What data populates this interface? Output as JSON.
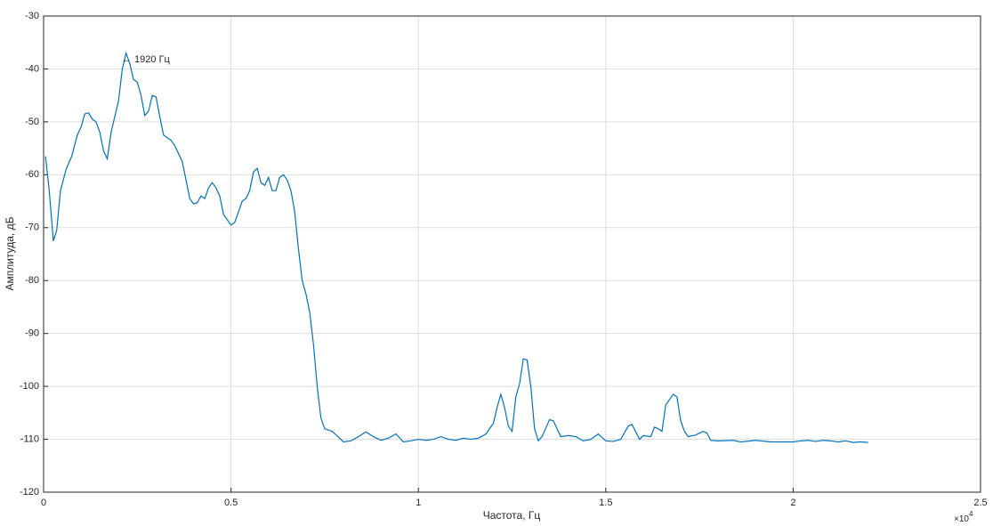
{
  "chart_data": {
    "type": "line",
    "xlabel": "Частота, Гц",
    "ylabel": "Амплитуда, дБ",
    "annotation": "← 1920 Гц",
    "x_multiplier": {
      "base": "×10",
      "exponent": "4"
    },
    "color": "#0072bd",
    "grid": true,
    "xlim": [
      0,
      2.5
    ],
    "xticks": [
      0,
      0.5,
      1,
      1.5,
      2,
      2.5
    ],
    "ylim": [
      -120,
      -30
    ],
    "yticks": [
      -120,
      -110,
      -100,
      -90,
      -80,
      -70,
      -60,
      -50,
      -40,
      -30
    ],
    "x": [
      0.005,
      0.015,
      0.026,
      0.035,
      0.045,
      0.06,
      0.075,
      0.09,
      0.1,
      0.11,
      0.12,
      0.13,
      0.14,
      0.15,
      0.16,
      0.17,
      0.18,
      0.19,
      0.2,
      0.21,
      0.22,
      0.23,
      0.24,
      0.25,
      0.26,
      0.27,
      0.28,
      0.29,
      0.3,
      0.31,
      0.32,
      0.33,
      0.34,
      0.35,
      0.36,
      0.37,
      0.38,
      0.39,
      0.4,
      0.41,
      0.42,
      0.43,
      0.44,
      0.45,
      0.46,
      0.47,
      0.48,
      0.49,
      0.5,
      0.51,
      0.52,
      0.53,
      0.54,
      0.55,
      0.56,
      0.57,
      0.58,
      0.59,
      0.6,
      0.61,
      0.62,
      0.63,
      0.64,
      0.65,
      0.66,
      0.67,
      0.68,
      0.69,
      0.7,
      0.71,
      0.72,
      0.73,
      0.74,
      0.75,
      0.77,
      0.79,
      0.8,
      0.82,
      0.84,
      0.86,
      0.88,
      0.9,
      0.92,
      0.94,
      0.96,
      0.98,
      1.0,
      1.02,
      1.04,
      1.06,
      1.08,
      1.1,
      1.12,
      1.14,
      1.16,
      1.18,
      1.2,
      1.21,
      1.22,
      1.23,
      1.24,
      1.25,
      1.26,
      1.27,
      1.28,
      1.29,
      1.3,
      1.31,
      1.32,
      1.33,
      1.35,
      1.36,
      1.38,
      1.4,
      1.42,
      1.44,
      1.46,
      1.48,
      1.5,
      1.52,
      1.54,
      1.56,
      1.57,
      1.59,
      1.6,
      1.62,
      1.63,
      1.64,
      1.65,
      1.66,
      1.68,
      1.69,
      1.7,
      1.71,
      1.72,
      1.74,
      1.76,
      1.77,
      1.78,
      1.8,
      1.84,
      1.86,
      1.9,
      1.94,
      1.98,
      2.0,
      2.02,
      2.04,
      2.06,
      2.08,
      2.1,
      2.12,
      2.14,
      2.16,
      2.18,
      2.2
    ],
    "values": [
      -56.5,
      -63,
      -72.5,
      -70.5,
      -63,
      -59,
      -56.5,
      -52.5,
      -51,
      -48.5,
      -48.3,
      -49.5,
      -50,
      -52,
      -55.5,
      -57,
      -52,
      -49,
      -46,
      -40,
      -37,
      -39,
      -42,
      -42.5,
      -45,
      -48.8,
      -48,
      -45,
      -45.3,
      -49,
      -52.5,
      -53,
      -53.5,
      -54.5,
      -56,
      -57.5,
      -61,
      -64.5,
      -65.5,
      -65.3,
      -64,
      -64.5,
      -62.5,
      -61.5,
      -62.5,
      -64,
      -67.5,
      -68.5,
      -69.5,
      -69,
      -67,
      -65,
      -64.5,
      -63,
      -59.5,
      -58.8,
      -61.5,
      -62,
      -60.5,
      -63,
      -63,
      -60.5,
      -60,
      -61,
      -63,
      -67,
      -74,
      -80,
      -82.5,
      -86,
      -92,
      -100,
      -106,
      -108,
      -108.5,
      -109.8,
      -110.5,
      -110.3,
      -109.5,
      -108.6,
      -109.5,
      -110.2,
      -109.8,
      -109,
      -110.5,
      -110.3,
      -110,
      -110.2,
      -110,
      -109.5,
      -110,
      -110.2,
      -109.8,
      -110,
      -109.8,
      -109,
      -107,
      -104,
      -101.5,
      -104,
      -107.5,
      -108.5,
      -102,
      -99.5,
      -94.8,
      -95,
      -100,
      -108,
      -110.3,
      -109.5,
      -106.3,
      -106.5,
      -109.5,
      -109.3,
      -109.5,
      -110.3,
      -110,
      -109,
      -110.3,
      -110.4,
      -110,
      -107.5,
      -107.2,
      -110,
      -109.3,
      -109.5,
      -107.7,
      -108,
      -108.5,
      -103.5,
      -101.5,
      -102,
      -106.5,
      -108.5,
      -109.5,
      -109.2,
      -108.5,
      -108.8,
      -110.2,
      -110.3,
      -110.2,
      -110.5,
      -110.2,
      -110.5,
      -110.5,
      -110.5,
      -110.3,
      -110.2,
      -110.4,
      -110.2,
      -110.3,
      -110.5,
      -110.3,
      -110.6,
      -110.5,
      -110.6
    ]
  }
}
